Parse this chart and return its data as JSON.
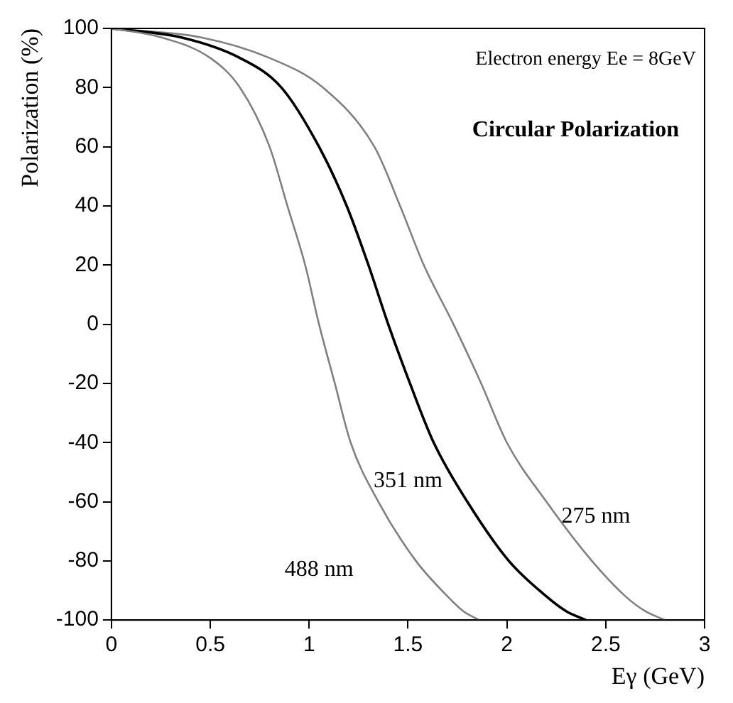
{
  "chart_data": {
    "type": "line",
    "xlabel": "Eγ (GeV)",
    "ylabel": "Polarization (%)",
    "annotations": [
      "Electron energy Ee = 8GeV",
      "Circular Polarization"
    ],
    "xlim": [
      0,
      3
    ],
    "xticks": [
      0,
      0.5,
      1,
      1.5,
      2,
      2.5,
      3
    ],
    "ylim": [
      -100,
      100
    ],
    "yticks": [
      -100,
      -80,
      -60,
      -40,
      -20,
      0,
      20,
      40,
      60,
      80,
      100
    ],
    "grid": false,
    "legend": false,
    "marker": "none",
    "line_style": "solid",
    "series": [
      {
        "name": "488 nm",
        "color": "#808080",
        "x": [
          0,
          0.25,
          0.5,
          0.65,
          0.8,
          0.89,
          0.98,
          1.05,
          1.13,
          1.21,
          1.35,
          1.54,
          1.7,
          1.78,
          1.86
        ],
        "values": [
          100,
          97,
          90,
          80,
          60,
          40,
          20,
          0,
          -20,
          -40,
          -60,
          -80,
          -92,
          -97,
          -100
        ]
      },
      {
        "name": "351 nm",
        "color": "#000000",
        "x": [
          0,
          0.35,
          0.65,
          0.86,
          1.05,
          1.19,
          1.3,
          1.4,
          1.51,
          1.63,
          1.8,
          2.01,
          2.2,
          2.3,
          2.4
        ],
        "values": [
          100,
          97,
          90,
          80,
          60,
          40,
          20,
          0,
          -20,
          -40,
          -60,
          -80,
          -92,
          -97,
          -100
        ]
      },
      {
        "name": "275 nm",
        "color": "#808080",
        "x": [
          0,
          0.45,
          0.8,
          1.07,
          1.33,
          1.46,
          1.58,
          1.73,
          1.87,
          2.0,
          2.2,
          2.43,
          2.6,
          2.7,
          2.8
        ],
        "values": [
          100,
          97,
          90,
          80,
          60,
          40,
          20,
          0,
          -20,
          -40,
          -60,
          -80,
          -92,
          -97,
          -100
        ]
      }
    ]
  }
}
